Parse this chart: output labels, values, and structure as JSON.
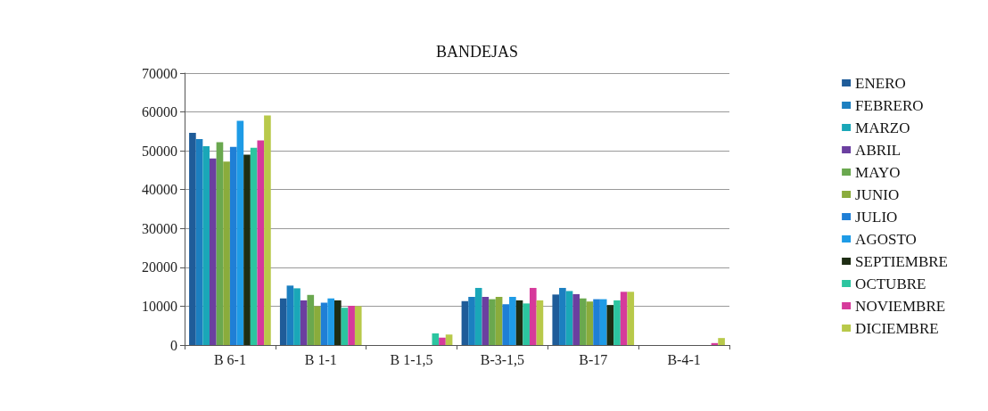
{
  "chart_data": {
    "type": "bar",
    "title": "BANDEJAS",
    "categories": [
      "B 6-1",
      "B 1-1",
      "B 1-1,5",
      "B-3-1,5",
      "B-17",
      "B-4-1"
    ],
    "series": [
      {
        "name": "ENERO",
        "color": "#1f5c99",
        "values": [
          54600,
          12000,
          0,
          11300,
          13000,
          0
        ]
      },
      {
        "name": "FEBRERO",
        "color": "#1c7fc0",
        "values": [
          53000,
          15300,
          0,
          12400,
          14700,
          0
        ]
      },
      {
        "name": "MARZO",
        "color": "#1aa7b8",
        "values": [
          51200,
          14600,
          0,
          14700,
          13900,
          0
        ]
      },
      {
        "name": "ABRIL",
        "color": "#6b3fa0",
        "values": [
          48000,
          11500,
          0,
          12400,
          13100,
          0
        ]
      },
      {
        "name": "MAYO",
        "color": "#6aa84f",
        "values": [
          52200,
          12900,
          0,
          11800,
          12000,
          0
        ]
      },
      {
        "name": "JUNIO",
        "color": "#8aac3c",
        "values": [
          47200,
          10000,
          0,
          12400,
          11200,
          0
        ]
      },
      {
        "name": "JULIO",
        "color": "#1f7fd6",
        "values": [
          51000,
          10900,
          0,
          10500,
          11800,
          0
        ]
      },
      {
        "name": "AGOSTO",
        "color": "#1e9be6",
        "values": [
          57700,
          12000,
          0,
          12400,
          11800,
          0
        ]
      },
      {
        "name": "SEPTIEMBRE",
        "color": "#1e2d14",
        "values": [
          49000,
          11500,
          0,
          11500,
          10300,
          0
        ]
      },
      {
        "name": "OCTUBRE",
        "color": "#2cc5a0",
        "values": [
          50800,
          9600,
          3000,
          10700,
          11500,
          0
        ]
      },
      {
        "name": "NOVIEMBRE",
        "color": "#d63a9b",
        "values": [
          52700,
          10100,
          1900,
          14700,
          13700,
          500
        ]
      },
      {
        "name": "DICIEMBRE",
        "color": "#b8c94a",
        "values": [
          59100,
          10000,
          2700,
          11500,
          13700,
          1800
        ]
      }
    ],
    "ylim": [
      0,
      70000
    ],
    "yticks": [
      0,
      10000,
      20000,
      30000,
      40000,
      50000,
      60000,
      70000
    ],
    "grid": "y",
    "legend": "right"
  }
}
